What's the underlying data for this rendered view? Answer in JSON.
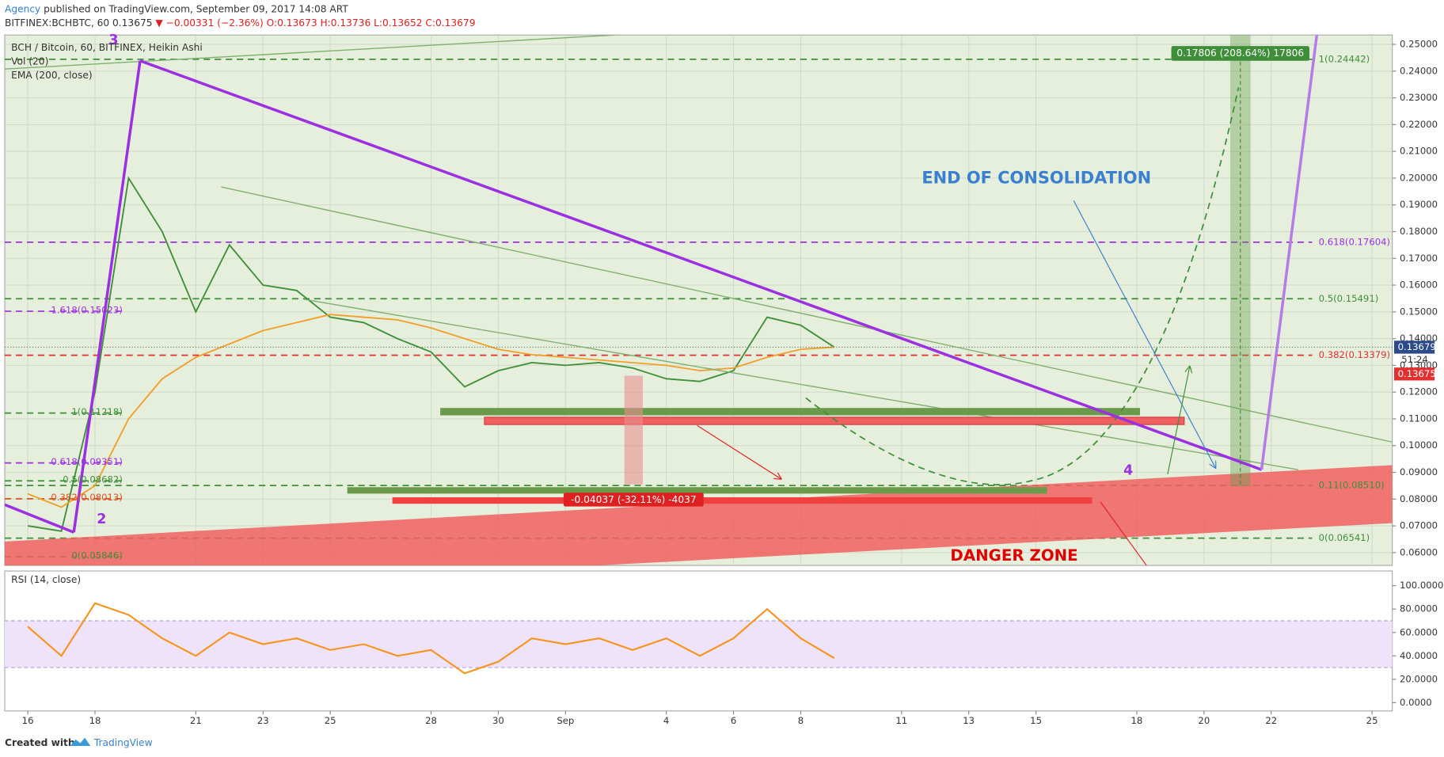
{
  "header": {
    "author": "Agency",
    "published": "published on TradingView.com, September 09, 2017 14:08 ART",
    "symbol": "BITFINEX:BCHBTC, 60",
    "last": "0.13675",
    "change": "▼ −0.00331 (−2.36%)",
    "ohlc": "O:0.13673 H:0.13736 L:0.13652 C:0.13679"
  },
  "footer": {
    "created": "Created with",
    "brand": "TradingView"
  },
  "chart_data": [
    {
      "type": "line",
      "title": "BCH / Bitcoin, 60, BITFINEX, Heikin Ashi",
      "volume_label": "Vol (20)",
      "x": [
        "2017-08-16",
        "2017-08-17",
        "2017-08-18",
        "2017-08-19",
        "2017-08-20",
        "2017-08-21",
        "2017-08-22",
        "2017-08-23",
        "2017-08-24",
        "2017-08-25",
        "2017-08-26",
        "2017-08-27",
        "2017-08-28",
        "2017-08-29",
        "2017-08-30",
        "2017-08-31",
        "2017-09-01",
        "2017-09-02",
        "2017-09-03",
        "2017-09-04",
        "2017-09-05",
        "2017-09-06",
        "2017-09-07",
        "2017-09-08",
        "2017-09-09"
      ],
      "series": [
        {
          "name": "BCH / Bitcoin, 60, BITFINEX, Heikin Ashi",
          "color": "#3f8f3a",
          "values": [
            0.07,
            0.068,
            0.12,
            0.2,
            0.18,
            0.15,
            0.175,
            0.16,
            0.158,
            0.148,
            0.146,
            0.14,
            0.135,
            0.122,
            0.128,
            0.131,
            0.13,
            0.131,
            0.129,
            0.125,
            0.124,
            0.128,
            0.148,
            0.145,
            0.1368
          ]
        },
        {
          "name": "EMA (200, close)",
          "color": "#f0a02a",
          "values": [
            0.082,
            0.077,
            0.085,
            0.11,
            0.125,
            0.133,
            0.138,
            0.143,
            0.146,
            0.149,
            0.148,
            0.147,
            0.144,
            0.14,
            0.136,
            0.134,
            0.133,
            0.132,
            0.131,
            0.13,
            0.128,
            0.129,
            0.133,
            0.136,
            0.1368
          ]
        }
      ],
      "xlim": [
        "2017-08-15",
        "2017-09-26"
      ],
      "xticks": [
        {
          "value": "2017-08-16",
          "label": "16"
        },
        {
          "value": "2017-08-18",
          "label": "18"
        },
        {
          "value": "2017-08-21",
          "label": "21"
        },
        {
          "value": "2017-08-23",
          "label": "23"
        },
        {
          "value": "2017-08-25",
          "label": "25"
        },
        {
          "value": "2017-08-28",
          "label": "28"
        },
        {
          "value": "2017-08-30",
          "label": "30"
        },
        {
          "value": "2017-09-01",
          "label": "Sep"
        },
        {
          "value": "2017-09-04",
          "label": "4"
        },
        {
          "value": "2017-09-06",
          "label": "6"
        },
        {
          "value": "2017-09-08",
          "label": "8"
        },
        {
          "value": "2017-09-11",
          "label": "11"
        },
        {
          "value": "2017-09-13",
          "label": "13"
        },
        {
          "value": "2017-09-15",
          "label": "15"
        },
        {
          "value": "2017-09-18",
          "label": "18"
        },
        {
          "value": "2017-09-20",
          "label": "20"
        },
        {
          "value": "2017-09-22",
          "label": "22"
        },
        {
          "value": "2017-09-25",
          "label": "25"
        }
      ],
      "ylim": [
        0.0552,
        0.2535
      ],
      "yticks": [
        {
          "value": 0.06,
          "label": "0.06000"
        },
        {
          "value": 0.07,
          "label": "0.07000"
        },
        {
          "value": 0.08,
          "label": "0.08000"
        },
        {
          "value": 0.09,
          "label": "0.09000"
        },
        {
          "value": 0.1,
          "label": "0.10000"
        },
        {
          "value": 0.11,
          "label": "0.11000"
        },
        {
          "value": 0.12,
          "label": "0.12000"
        },
        {
          "value": 0.13,
          "label": "0.13000"
        },
        {
          "value": 0.14,
          "label": "0.14000"
        },
        {
          "value": 0.15,
          "label": "0.15000"
        },
        {
          "value": 0.16,
          "label": "0.16000"
        },
        {
          "value": 0.17,
          "label": "0.17000"
        },
        {
          "value": 0.18,
          "label": "0.18000"
        },
        {
          "value": 0.19,
          "label": "0.19000"
        },
        {
          "value": 0.2,
          "label": "0.20000"
        },
        {
          "value": 0.21,
          "label": "0.21000"
        },
        {
          "value": 0.22,
          "label": "0.22000"
        },
        {
          "value": 0.23,
          "label": "0.23000"
        },
        {
          "value": 0.24,
          "label": "0.24000"
        },
        {
          "value": 0.25,
          "label": "0.25000"
        }
      ],
      "grid": true,
      "fib_right": [
        {
          "label": "1(0.24442)",
          "value": 0.24442,
          "color": "#3f8f3a"
        },
        {
          "label": "0.618(0.17604)",
          "value": 0.17604,
          "color": "#9b30e0"
        },
        {
          "label": "0.5(0.15491)",
          "value": 0.15491,
          "color": "#3f8f3a"
        },
        {
          "label": "0.382(0.13379)",
          "value": 0.13379,
          "color": "#e03030"
        },
        {
          "label": "0.11(0.08510)",
          "value": 0.0851,
          "color": "#3f8f3a"
        },
        {
          "label": "0(0.06541)",
          "value": 0.06541,
          "color": "#3f8f3a"
        }
      ],
      "fib_left": [
        {
          "label": "1.618(0.15023)",
          "value": 0.15023,
          "color": "#9b30e0"
        },
        {
          "label": "1(0.11218)",
          "value": 0.11218,
          "color": "#3f8f3a"
        },
        {
          "label": "0.618(0.09351)",
          "value": 0.09351,
          "color": "#9b30e0"
        },
        {
          "label": "0.5(0.08682)",
          "value": 0.08682,
          "color": "#3f8f3a"
        },
        {
          "label": "0.382(0.08013)",
          "value": 0.08013,
          "color": "#e05020"
        },
        {
          "label": "0(0.05846)",
          "value": 0.05846,
          "color": "#3f8f3a"
        }
      ],
      "last_close": 0.13679,
      "last_price": 0.13675,
      "countdown": "51:24",
      "annotations": {
        "consolidation": "END OF CONSOLIDATION",
        "danger": "DANGER ZONE",
        "gain": "0.17806 (208.64%) 17806",
        "loss": "-0.04037 (-32.11%) -4037",
        "wave2": "2",
        "wave3": "3",
        "wave4": "4"
      }
    },
    {
      "type": "line",
      "x": [
        "2017-08-16",
        "2017-08-17",
        "2017-08-18",
        "2017-08-19",
        "2017-08-20",
        "2017-08-21",
        "2017-08-22",
        "2017-08-23",
        "2017-08-24",
        "2017-08-25",
        "2017-08-26",
        "2017-08-27",
        "2017-08-28",
        "2017-08-29",
        "2017-08-30",
        "2017-08-31",
        "2017-09-01",
        "2017-09-02",
        "2017-09-03",
        "2017-09-04",
        "2017-09-05",
        "2017-09-06",
        "2017-09-07",
        "2017-09-08",
        "2017-09-09"
      ],
      "series": [
        {
          "name": "RSI (14, close)",
          "color": "#f7931a",
          "values": [
            65,
            40,
            85,
            75,
            55,
            40,
            60,
            50,
            55,
            45,
            50,
            40,
            45,
            25,
            35,
            55,
            50,
            55,
            45,
            55,
            40,
            55,
            80,
            55,
            38
          ]
        }
      ],
      "xlim": [
        "2017-08-15",
        "2017-09-26"
      ],
      "ylim": [
        -7.1,
        112.6
      ],
      "yticks": [
        {
          "value": 0,
          "label": "0.0000"
        },
        {
          "value": 20,
          "label": "20.0000"
        },
        {
          "value": 40,
          "label": "40.0000"
        },
        {
          "value": 60,
          "label": "60.0000"
        },
        {
          "value": 80,
          "label": "80.0000"
        },
        {
          "value": 100,
          "label": "100.0000"
        }
      ],
      "band": [
        30,
        70
      ],
      "band_color": "#efe3fb"
    }
  ]
}
